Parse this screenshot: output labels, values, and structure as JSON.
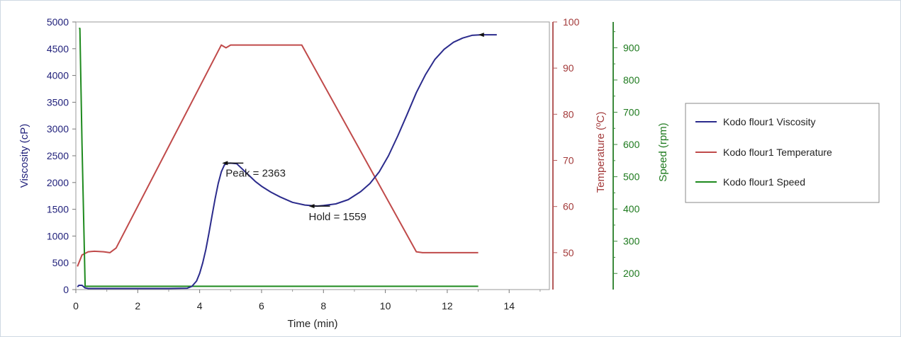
{
  "chart_data": {
    "type": "line",
    "xlabel": "Time  (min)",
    "xlim": [
      0,
      15.3
    ],
    "xticks": [
      0,
      2,
      4,
      6,
      8,
      10,
      12,
      14
    ],
    "axes": {
      "viscosity": {
        "label": "Viscosity  (cP)",
        "range": [
          0,
          5000
        ],
        "ticks": [
          0,
          500,
          1000,
          1500,
          2000,
          2500,
          3000,
          3500,
          4000,
          4500,
          5000
        ],
        "color": "#1f1f7a"
      },
      "temperature": {
        "label": "Temperature  (ºC)",
        "range": [
          42,
          100
        ],
        "ticks": [
          50,
          60,
          70,
          80,
          90,
          100
        ],
        "color": "#a33a3a"
      },
      "speed": {
        "label": "Speed  (rpm)",
        "range": [
          150,
          980
        ],
        "ticks": [
          200,
          300,
          400,
          500,
          600,
          700,
          800,
          900
        ],
        "color": "#1e7a1e"
      }
    },
    "series": [
      {
        "name": "Kodo flour1 Viscosity",
        "axis": "viscosity",
        "color": "#2b2b8c",
        "x": [
          0.05,
          0.1,
          0.2,
          0.3,
          0.4,
          1,
          2,
          3,
          3.6,
          3.75,
          3.9,
          4.0,
          4.1,
          4.2,
          4.3,
          4.4,
          4.5,
          4.6,
          4.7,
          4.8,
          4.9,
          5.0,
          5.2,
          5.4,
          5.6,
          5.8,
          6.0,
          6.3,
          6.6,
          7.0,
          7.4,
          7.8,
          8.0,
          8.4,
          8.8,
          9.2,
          9.5,
          9.8,
          10.1,
          10.4,
          10.7,
          11.0,
          11.3,
          11.6,
          11.9,
          12.2,
          12.5,
          12.8,
          13.1,
          13.4,
          13.6
        ],
        "y": [
          50,
          80,
          80,
          30,
          20,
          20,
          20,
          20,
          25,
          60,
          160,
          300,
          500,
          750,
          1050,
          1380,
          1700,
          1980,
          2200,
          2330,
          2360,
          2363,
          2350,
          2240,
          2130,
          2020,
          1930,
          1820,
          1730,
          1630,
          1580,
          1560,
          1570,
          1600,
          1680,
          1830,
          1980,
          2200,
          2500,
          2870,
          3270,
          3680,
          4020,
          4300,
          4490,
          4620,
          4700,
          4750,
          4760,
          4760,
          4760
        ]
      },
      {
        "name": "Kodo flour1 Temperature",
        "axis": "temperature",
        "color": "#c04a4a",
        "x": [
          0.05,
          0.2,
          0.4,
          0.6,
          0.9,
          1.1,
          1.3,
          4.7,
          4.85,
          5.0,
          7.3,
          11.0,
          11.2,
          13.0
        ],
        "y": [
          47,
          49.5,
          50.2,
          50.3,
          50.2,
          50,
          51,
          95,
          94.4,
          95,
          95,
          50.2,
          50,
          50
        ]
      },
      {
        "name": "Kodo flour1 Speed",
        "axis": "speed",
        "color": "#1e8a1e",
        "x": [
          0.1,
          0.13,
          0.2,
          0.3,
          4.5,
          13.0
        ],
        "y": [
          960,
          960,
          600,
          160,
          160,
          160
        ]
      }
    ],
    "annotations": [
      {
        "text": "Peak = 2363",
        "x": 5.0,
        "y": 2363
      },
      {
        "text": "Hold = 1559",
        "x": 7.8,
        "y": 1559
      }
    ],
    "legend": {
      "placement": "right",
      "entries": [
        {
          "label": "Kodo flour1 Viscosity",
          "color": "#2b2b8c"
        },
        {
          "label": "Kodo flour1 Temperature",
          "color": "#c04a4a"
        },
        {
          "label": "Kodo flour1 Speed",
          "color": "#1e8a1e"
        }
      ]
    }
  }
}
